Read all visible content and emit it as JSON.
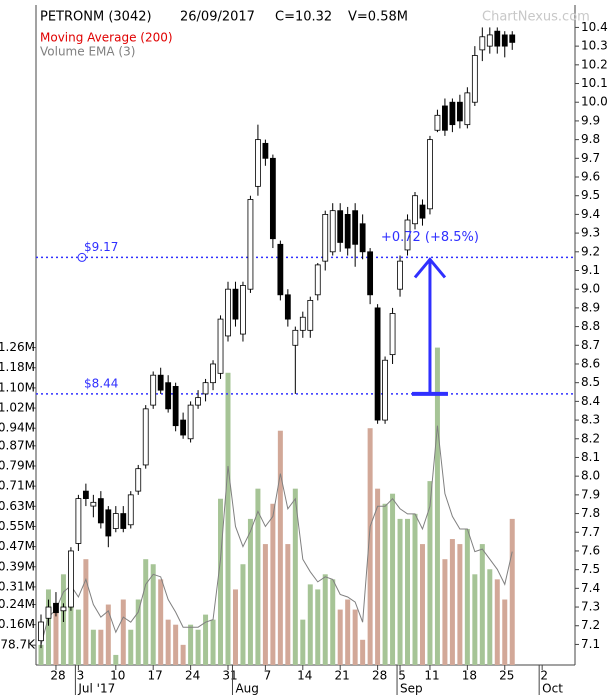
{
  "chart_data": {
    "type": "candlestick",
    "title": "PETRONM (3042)",
    "date_label": "26/09/2017",
    "close_label": "C=10.32",
    "volume_label": "V=0.58M",
    "watermark": "ChartNexus.com",
    "moving_average": {
      "name": "Moving Average (200)",
      "color": "#e00000"
    },
    "categories": [
      "2017-06-22",
      "2017-06-23",
      "2017-06-28",
      "2017-06-29",
      "2017-06-30",
      "2017-07-03",
      "2017-07-04",
      "2017-07-05",
      "2017-07-06",
      "2017-07-07",
      "2017-07-10",
      "2017-07-11",
      "2017-07-12",
      "2017-07-13",
      "2017-07-14",
      "2017-07-17",
      "2017-07-18",
      "2017-07-19",
      "2017-07-20",
      "2017-07-21",
      "2017-07-24",
      "2017-07-25",
      "2017-07-26",
      "2017-07-27",
      "2017-07-28",
      "2017-07-31",
      "2017-08-01",
      "2017-08-02",
      "2017-08-03",
      "2017-08-04",
      "2017-08-07",
      "2017-08-08",
      "2017-08-09",
      "2017-08-10",
      "2017-08-11",
      "2017-08-14",
      "2017-08-15",
      "2017-08-16",
      "2017-08-17",
      "2017-08-18",
      "2017-08-21",
      "2017-08-22",
      "2017-08-23",
      "2017-08-24",
      "2017-08-25",
      "2017-08-28",
      "2017-08-29",
      "2017-08-30",
      "2017-09-05",
      "2017-09-06",
      "2017-09-07",
      "2017-09-08",
      "2017-09-11",
      "2017-09-12",
      "2017-09-13",
      "2017-09-14",
      "2017-09-15",
      "2017-09-18",
      "2017-09-19",
      "2017-09-20",
      "2017-09-21",
      "2017-09-22",
      "2017-09-25",
      "2017-09-26"
    ],
    "open": [
      7.12,
      7.24,
      7.32,
      7.28,
      7.3,
      7.64,
      7.92,
      7.84,
      7.88,
      7.82,
      7.72,
      7.8,
      7.74,
      7.92,
      8.06,
      8.38,
      8.54,
      8.5,
      8.48,
      8.3,
      8.2,
      8.38,
      8.44,
      8.5,
      8.55,
      8.75,
      9.0,
      8.76,
      9.0,
      9.55,
      9.78,
      9.7,
      9.24,
      8.97,
      8.7,
      8.78,
      8.78,
      8.97,
      9.15,
      9.2,
      9.42,
      9.4,
      9.42,
      9.35,
      9.2,
      8.9,
      8.3,
      8.65,
      9.0,
      9.21,
      9.35,
      9.45,
      9.43,
      9.85,
      9.98,
      10.0,
      10.0,
      9.88,
      10.0,
      10.28,
      10.3,
      10.38,
      10.36,
      10.36
    ],
    "high": [
      7.26,
      7.34,
      7.38,
      7.32,
      7.62,
      7.9,
      7.96,
      7.9,
      7.92,
      7.84,
      7.84,
      7.84,
      7.92,
      8.06,
      8.38,
      8.56,
      8.58,
      8.54,
      8.5,
      8.34,
      8.4,
      8.46,
      8.52,
      8.62,
      8.86,
      9.04,
      9.04,
      9.04,
      9.5,
      9.88,
      9.8,
      9.72,
      9.26,
      9.0,
      8.8,
      8.88,
      8.96,
      9.14,
      9.42,
      9.46,
      9.46,
      9.44,
      9.46,
      9.4,
      9.22,
      8.92,
      8.64,
      8.9,
      9.18,
      9.4,
      9.52,
      9.48,
      9.82,
      9.96,
      10.02,
      10.02,
      10.04,
      10.08,
      10.3,
      10.4,
      10.4,
      10.4,
      10.38,
      10.38
    ],
    "low": [
      7.08,
      7.2,
      7.25,
      7.22,
      7.28,
      7.6,
      7.84,
      7.78,
      7.72,
      7.62,
      7.7,
      7.7,
      7.72,
      7.9,
      8.04,
      8.36,
      8.44,
      8.34,
      8.24,
      8.2,
      8.18,
      8.36,
      8.4,
      8.46,
      8.52,
      8.72,
      8.8,
      8.72,
      8.98,
      9.5,
      9.66,
      9.22,
      8.94,
      8.8,
      8.44,
      8.74,
      8.74,
      8.94,
      9.1,
      9.18,
      9.2,
      9.18,
      9.12,
      9.16,
      8.92,
      8.28,
      8.28,
      8.6,
      8.96,
      9.18,
      9.32,
      9.34,
      9.4,
      9.84,
      9.82,
      9.84,
      9.86,
      9.86,
      9.98,
      10.22,
      10.26,
      10.26,
      10.24,
      10.28
    ],
    "close": [
      7.22,
      7.3,
      7.27,
      7.3,
      7.6,
      7.88,
      7.88,
      7.86,
      7.75,
      7.68,
      7.8,
      7.72,
      7.9,
      8.04,
      8.36,
      8.54,
      8.46,
      8.36,
      8.27,
      8.22,
      8.38,
      8.42,
      8.5,
      8.6,
      8.84,
      9.0,
      8.84,
      9.02,
      9.48,
      9.8,
      9.7,
      9.27,
      8.97,
      8.84,
      8.78,
      8.85,
      8.94,
      9.13,
      9.4,
      9.42,
      9.25,
      9.22,
      9.24,
      9.2,
      8.97,
      8.3,
      8.62,
      8.87,
      9.15,
      9.37,
      9.5,
      9.38,
      9.8,
      9.93,
      9.85,
      9.88,
      9.9,
      10.05,
      10.25,
      10.35,
      10.36,
      10.3,
      10.3,
      10.32
    ],
    "up_color": "#ffffff",
    "down_color": "#000000",
    "volume": {
      "up_color": "#a6c496",
      "down_color": "#d2a898",
      "values": [
        0.08,
        0.3,
        0.24,
        0.36,
        0.34,
        0.22,
        0.42,
        0.14,
        0.14,
        0.24,
        0.04,
        0.26,
        0.14,
        0.26,
        0.42,
        0.4,
        0.34,
        0.18,
        0.16,
        0.08,
        0.16,
        0.14,
        0.2,
        0.18,
        0.66,
        1.16,
        0.3,
        0.4,
        0.58,
        0.7,
        0.48,
        0.64,
        0.93,
        0.48,
        0.7,
        0.18,
        0.32,
        0.3,
        0.36,
        0.34,
        0.22,
        0.26,
        0.22,
        0.1,
        0.94,
        0.7,
        0.64,
        0.68,
        0.58,
        0.58,
        0.6,
        0.48,
        0.73,
        1.26,
        0.42,
        0.5,
        0.48,
        0.54,
        0.36,
        0.48,
        0.38,
        0.34,
        0.26,
        0.58
      ]
    },
    "volume_ema": {
      "name": "Volume EMA (3)",
      "color": "#808080",
      "values": [
        0.08,
        0.19,
        0.22,
        0.29,
        0.315,
        0.27,
        0.34,
        0.24,
        0.19,
        0.215,
        0.13,
        0.19,
        0.17,
        0.21,
        0.32,
        0.36,
        0.35,
        0.26,
        0.21,
        0.15,
        0.15,
        0.15,
        0.17,
        0.18,
        0.42,
        0.79,
        0.55,
        0.47,
        0.53,
        0.61,
        0.55,
        0.59,
        0.76,
        0.62,
        0.66,
        0.42,
        0.37,
        0.33,
        0.35,
        0.34,
        0.28,
        0.27,
        0.25,
        0.17,
        0.55,
        0.63,
        0.63,
        0.66,
        0.62,
        0.6,
        0.6,
        0.54,
        0.63,
        0.95,
        0.68,
        0.59,
        0.54,
        0.54,
        0.45,
        0.46,
        0.42,
        0.38,
        0.32,
        0.45
      ]
    },
    "ylim": [
      6.99,
      10.52
    ],
    "yticks": [
      7.1,
      7.2,
      7.3,
      7.4,
      7.5,
      7.6,
      7.7,
      7.8,
      7.9,
      {
        "value": 8,
        "label": "8.0"
      },
      8.1,
      8.2,
      8.3,
      8.4,
      8.5,
      8.6,
      8.7,
      8.8,
      8.9,
      {
        "value": 9,
        "label": "9.0"
      },
      9.1,
      9.2,
      9.3,
      9.4,
      9.5,
      9.6,
      9.7,
      9.8,
      9.9,
      {
        "value": 10,
        "label": "10.0"
      },
      10.1,
      10.2,
      10.3,
      10.4
    ],
    "y2lim": [
      0,
      2.62
    ],
    "y2ticks": [
      {
        "value": 0.0787,
        "label": "78.7K"
      },
      {
        "value": 0.16,
        "label": "0.16M"
      },
      {
        "value": 0.24,
        "label": "0.24M"
      },
      {
        "value": 0.31,
        "label": "0.31M"
      },
      {
        "value": 0.39,
        "label": "0.39M"
      },
      {
        "value": 0.47,
        "label": "0.47M"
      },
      {
        "value": 0.55,
        "label": "0.55M"
      },
      {
        "value": 0.63,
        "label": "0.63M"
      },
      {
        "value": 0.71,
        "label": "0.71M"
      },
      {
        "value": 0.79,
        "label": "0.79M"
      },
      {
        "value": 0.87,
        "label": "0.87M"
      },
      {
        "value": 0.94,
        "label": "0.94M"
      },
      {
        "value": 1.02,
        "label": "1.02M"
      },
      {
        "value": 1.1,
        "label": "1.10M"
      },
      {
        "value": 1.18,
        "label": "1.18M"
      },
      {
        "value": 1.26,
        "label": "1.26M"
      }
    ],
    "xticks": [
      {
        "value": "2017-06-28",
        "label": "28"
      },
      {
        "value": "2017-07-03",
        "label": "3"
      },
      {
        "value": "2017-07-10",
        "label": "10"
      },
      {
        "value": "2017-07-17",
        "label": "17"
      },
      {
        "value": "2017-07-24",
        "label": "24"
      },
      {
        "value": "2017-07-31",
        "label": "31"
      },
      {
        "value": "2017-08-07",
        "label": "7"
      },
      {
        "value": "2017-08-14",
        "label": "14"
      },
      {
        "value": "2017-08-21",
        "label": "21"
      },
      {
        "value": "2017-08-28",
        "label": "28"
      },
      {
        "value": "2017-09-05",
        "label": "5"
      },
      {
        "value": "2017-09-11",
        "label": "11"
      },
      {
        "value": "2017-09-18",
        "label": "18"
      },
      {
        "value": "2017-09-25",
        "label": "25"
      },
      {
        "value": "2017-10-02",
        "label": "2"
      }
    ],
    "month_labels": [
      {
        "value": "2017-07-03",
        "label": "Jul '17"
      },
      {
        "value": "2017-08-01",
        "label": "Aug"
      },
      {
        "value": "2017-09-05",
        "label": "Sep"
      },
      {
        "value": "2017-10-02",
        "label": "Oct"
      }
    ],
    "hlines": [
      {
        "value": 9.17,
        "label": "$9.17"
      },
      {
        "value": 8.44,
        "label": "$8.44"
      }
    ],
    "annotation_color": "#3030ff",
    "change": {
      "from": 8.44,
      "to": 9.17,
      "date": "2017-09-11",
      "label": "+0.72 (+8.5%)"
    }
  }
}
